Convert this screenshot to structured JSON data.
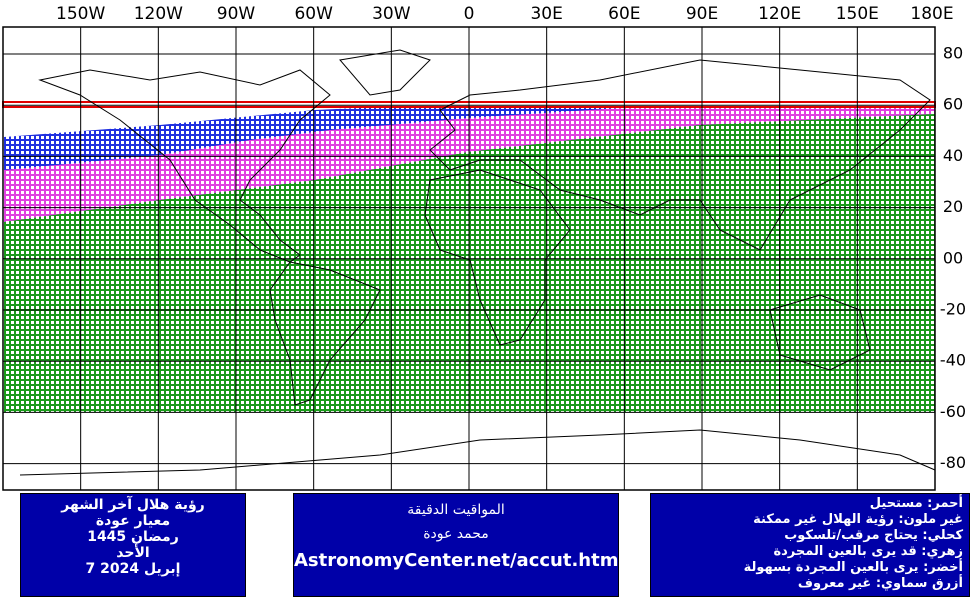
{
  "map": {
    "lon_labels": [
      "150W",
      "120W",
      "90W",
      "60W",
      "30W",
      "0",
      "30E",
      "60E",
      "90E",
      "120E",
      "150E",
      "180E"
    ],
    "lat_labels": [
      "80",
      "60",
      "40",
      "20",
      "00",
      "-20",
      "-40",
      "-60",
      "-80"
    ]
  },
  "boxes": {
    "left": [
      "رؤية هلال آخر الشهر",
      "معيار عودة",
      "رمضان 1445",
      "الأحد",
      "7 إبريل 2024"
    ],
    "middle": [
      "المواقيت الدقيقة",
      "محمد عودة",
      "AstronomyCenter.net/accut.html"
    ],
    "right": [
      "أحمر: مستحيل",
      "غير ملون: رؤية الهلال غير ممكنة",
      "كحلي: يحتاج مرقب/تلسكوب",
      "زهري: قد يرى بالعين المجردة",
      "أخضر: يرى بالعين المجردة بسهولة",
      "أزرق سماوي: غير معروف"
    ]
  }
}
